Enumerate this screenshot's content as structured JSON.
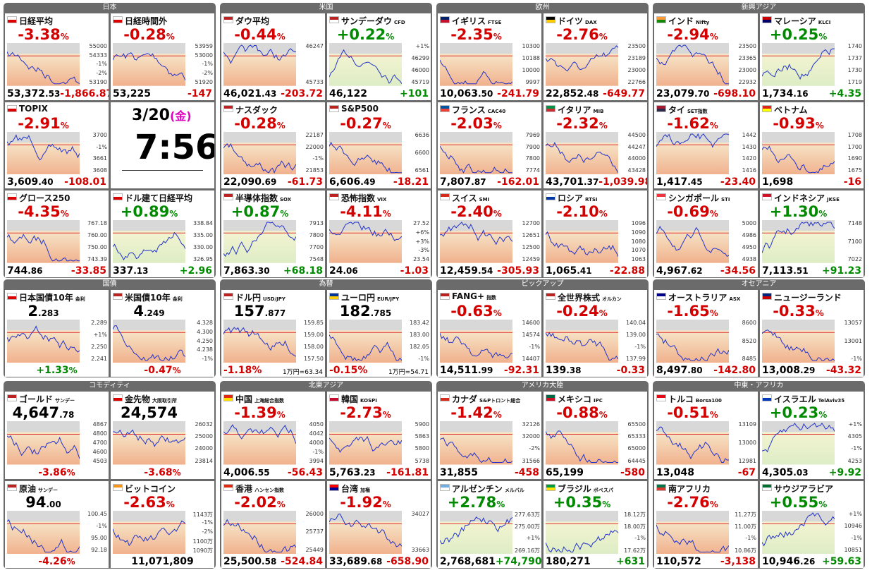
{
  "sections": [
    {
      "title": "日本",
      "tiles": [
        {
          "name": "日経平均",
          "flag": "jp",
          "head": "-3.38%",
          "labels": [
            "55000",
            "54333",
            "-1%",
            "-2%",
            "53190"
          ],
          "foot": [
            "53,372.53",
            "-1,866.87"
          ]
        },
        {
          "name": "日経時間外",
          "flag": "jp",
          "head": "-0.28%",
          "labels": [
            "53959",
            "53000",
            "-1%",
            "-2%",
            "51920"
          ],
          "foot": [
            "53,225",
            "-147"
          ]
        },
        {
          "name": "TOPIX",
          "flag": "jp",
          "head": "-2.91%",
          "labels": [
            "3700",
            "-1%",
            "3661",
            "3608"
          ],
          "foot": [
            "3,609.40",
            "-108.01"
          ]
        },
        {
          "date": "3/20",
          "weekday": "(金)",
          "time": "7:56"
        },
        {
          "name": "グロース250",
          "flag": "jp",
          "head": "-4.35%",
          "labels": [
            "767.18",
            "760.00",
            "750.00",
            "743.39"
          ],
          "foot": [
            "744.86",
            "-33.85"
          ]
        },
        {
          "name": "ドル建て日経平均",
          "flag": "jp",
          "head": "+0.89%",
          "labels": [
            "338.84",
            "335.00",
            "330.00",
            "326.95"
          ],
          "foot": [
            "337.13",
            "+2.96"
          ]
        }
      ]
    },
    {
      "title": "米国",
      "tiles": [
        {
          "name": "ダウ平均",
          "flag": "us",
          "head": "-0.44%",
          "labels": [
            "46247",
            "45733"
          ],
          "foot": [
            "46,021.43",
            "-203.72"
          ]
        },
        {
          "name": "サンデーダウ",
          "code": "CFD",
          "flag": "us",
          "head": "+0.22%",
          "labels": [
            "+1%",
            "46299",
            "46000",
            "45719"
          ],
          "foot": [
            "46,122",
            "+101"
          ]
        },
        {
          "name": "ナスダック",
          "flag": "us",
          "head": "-0.28%",
          "labels": [
            "22187",
            "22000",
            "-1%",
            "21853"
          ],
          "foot": [
            "22,090.69",
            "-61.73"
          ]
        },
        {
          "name": "S&P500",
          "flag": "us",
          "head": "-0.27%",
          "labels": [
            "6636",
            "6600",
            "6561"
          ],
          "foot": [
            "6,606.49",
            "-18.21"
          ]
        },
        {
          "name": "半導体指数",
          "code": "SOX",
          "flag": "us",
          "head": "+0.87%",
          "labels": [
            "7913",
            "7800",
            "7700",
            "7548"
          ],
          "foot": [
            "7,863.30",
            "+68.18"
          ]
        },
        {
          "name": "恐怖指数",
          "code": "VIX",
          "flag": "us",
          "head": "-4.11%",
          "labels": [
            "27.52",
            "+6%",
            "+3%",
            "-3%",
            "23.54"
          ],
          "foot": [
            "24.06",
            "-1.03"
          ]
        }
      ]
    },
    {
      "title": "欧州",
      "tiles": [
        {
          "name": "イギリス",
          "code": "FTSE",
          "flag": "gb",
          "head": "-2.35%",
          "labels": [
            "10300",
            "10188",
            "10000",
            "9997"
          ],
          "foot": [
            "10,063.50",
            "-241.79"
          ]
        },
        {
          "name": "ドイツ",
          "code": "DAX",
          "flag": "de",
          "head": "-2.76%",
          "labels": [
            "23500",
            "23189",
            "23000",
            "22766"
          ],
          "foot": [
            "22,852.48",
            "-649.77"
          ]
        },
        {
          "name": "フランス",
          "code": "CAC40",
          "flag": "fr",
          "head": "-2.03%",
          "labels": [
            "7969",
            "7900",
            "7800",
            "7774"
          ],
          "foot": [
            "7,807.87",
            "-162.01"
          ]
        },
        {
          "name": "イタリア",
          "code": "MIB",
          "flag": "it",
          "head": "-2.32%",
          "labels": [
            "44500",
            "44247",
            "44000",
            "43428"
          ],
          "foot": [
            "43,701.37",
            "-1,039.98"
          ]
        },
        {
          "name": "スイス",
          "code": "SMI",
          "flag": "ch",
          "head": "-2.40%",
          "labels": [
            "12700",
            "12651",
            "12500",
            "12459"
          ],
          "foot": [
            "12,459.54",
            "-305.93"
          ]
        },
        {
          "name": "ロシア",
          "code": "RTSI",
          "flag": "ru",
          "head": "-2.10%",
          "labels": [
            "1096",
            "1090",
            "1080",
            "1070",
            "1063"
          ],
          "foot": [
            "1,065.41",
            "-22.88"
          ]
        }
      ]
    },
    {
      "title": "新興アジア",
      "tiles": [
        {
          "name": "インド",
          "code": "Nifty",
          "flag": "in",
          "head": "-2.94%",
          "labels": [
            "23500",
            "23365",
            "23000",
            "22932"
          ],
          "foot": [
            "23,079.70",
            "-698.10"
          ]
        },
        {
          "name": "マレーシア",
          "code": "KLCI",
          "flag": "my",
          "head": "+0.25%",
          "labels": [
            "1740",
            "1737",
            "1730",
            "1719"
          ],
          "foot": [
            "1,734.16",
            "+4.35"
          ]
        },
        {
          "name": "タイ",
          "code": "SET指数",
          "flag": "th",
          "head": "-1.62%",
          "labels": [
            "1442",
            "1430",
            "1420",
            "1416"
          ],
          "foot": [
            "1,417.45",
            "-23.40"
          ]
        },
        {
          "name": "ベトナム",
          "flag": "vn",
          "head": "-0.93%",
          "labels": [
            "1708",
            "1700",
            "1690",
            "1675"
          ],
          "foot": [
            "1,698",
            "-16"
          ]
        },
        {
          "name": "シンガポール",
          "code": "STI",
          "flag": "sg",
          "head": "-0.69%",
          "labels": [
            "5000",
            "4986",
            "4950",
            "4938"
          ],
          "foot": [
            "4,967.62",
            "-34.56"
          ]
        },
        {
          "name": "インドネシア",
          "code": "JKSE",
          "flag": "id",
          "head": "+1.30%",
          "labels": [
            "7148",
            "7100",
            "7022"
          ],
          "foot": [
            "7,113.51",
            "+91.23"
          ]
        }
      ]
    },
    {
      "title": "国債",
      "tiles": [
        {
          "name": "日本国債10年",
          "code": "金利",
          "flag": "jp",
          "head": "2.283",
          "labels": [
            "2.289",
            "+1%",
            "2.250",
            "2.241"
          ],
          "foot": [
            "+1.33%"
          ]
        },
        {
          "name": "米国債10年",
          "code": "金利",
          "flag": "us",
          "head": "4.249",
          "labels": [
            "4.328",
            "4.300",
            "4.250",
            "4.238",
            "-1%"
          ],
          "foot": [
            "-0.47%"
          ]
        }
      ]
    },
    {
      "title": "為替",
      "tiles": [
        {
          "name": "ドル円",
          "code": "USD/JPY",
          "flag": "us",
          "head": "157.877",
          "labels": [
            "159.85",
            "159.00",
            "158.00",
            "157.50"
          ],
          "foot": [
            "-1.18%",
            "1万円=63.34"
          ]
        },
        {
          "name": "ユーロ円",
          "code": "EUR/JPY",
          "flag": "eu",
          "head": "182.785",
          "labels": [
            "183.42",
            "183.00",
            "182.05",
            "-1%"
          ],
          "foot": [
            "-0.15%",
            "1万円=54.71"
          ]
        }
      ]
    },
    {
      "title": "ピックアップ",
      "tiles": [
        {
          "name": "FANG+",
          "code": "指数",
          "flag": "us",
          "head": "-0.63%",
          "labels": [
            "14600",
            "14574",
            "-1%",
            "14407"
          ],
          "foot": [
            "14,511.99",
            "-92.31"
          ]
        },
        {
          "name": "全世界株式",
          "code": "オルカン",
          "flag": "us",
          "head": "-0.24%",
          "labels": [
            "140.04",
            "139.00",
            "-1%",
            "137.99"
          ],
          "foot": [
            "139.38",
            "-0.33"
          ]
        }
      ]
    },
    {
      "title": "オセアニア",
      "tiles": [
        {
          "name": "オーストラリア",
          "code": "ASX",
          "flag": "au",
          "head": "-1.65%",
          "labels": [
            "8600",
            "8520",
            "8485"
          ],
          "foot": [
            "8,497.80",
            "-142.80"
          ]
        },
        {
          "name": "ニュージーランド",
          "flag": "nz",
          "head": "-0.33%",
          "labels": [
            "13057",
            "13001",
            "-1%"
          ],
          "foot": [
            "13,008.29",
            "-43.32"
          ]
        }
      ]
    },
    {
      "title": "コモディティ",
      "tiles": [
        {
          "name": "ゴールド",
          "code": "サンデー",
          "flag": "us",
          "head": "4,647.78",
          "labels": [
            "4867",
            "4800",
            "4700",
            "4600",
            "4503"
          ],
          "foot": [
            "-3.86%"
          ]
        },
        {
          "name": "金先物",
          "code": "大阪取引所",
          "flag": "jp",
          "head": "24,574",
          "labels": [
            "26032",
            "25000",
            "24000",
            "23814"
          ],
          "foot": [
            "-3.68%"
          ]
        },
        {
          "name": "原油",
          "code": "サンデー",
          "flag": "us",
          "head": "94.00",
          "labels": [
            "100.45",
            "-1%",
            "95.00",
            "92.18"
          ],
          "foot": [
            "-4.26%"
          ]
        },
        {
          "name": "ビットコイン",
          "flag": "btc",
          "head": "-2.63%",
          "labels": [
            "1143万",
            "-1%",
            "-2%",
            "1100万",
            "1090万"
          ],
          "foot": [
            "11,071,809"
          ]
        }
      ]
    },
    {
      "title": "北東アジア",
      "tiles": [
        {
          "name": "中国",
          "code": "上海総合指数",
          "flag": "cn",
          "head": "-1.39%",
          "labels": [
            "4050",
            "4042",
            "4000",
            "-1%",
            "3994"
          ],
          "foot": [
            "4,006.55",
            "-56.43"
          ]
        },
        {
          "name": "韓国",
          "code": "KOSPI",
          "flag": "kr",
          "head": "-2.73%",
          "labels": [
            "5900",
            "5863",
            "5800",
            "5738"
          ],
          "foot": [
            "5,763.23",
            "-161.81"
          ]
        },
        {
          "name": "香港",
          "code": "ハンセン指数",
          "flag": "hk",
          "head": "-2.02%",
          "labels": [
            "26000",
            "25737",
            "25449"
          ],
          "foot": [
            "25,500.58",
            "-524.84"
          ]
        },
        {
          "name": "台湾",
          "code": "加権",
          "flag": "tw",
          "head": "-1.92%",
          "labels": [
            "34027",
            "33663"
          ],
          "foot": [
            "33,689.68",
            "-658.90"
          ]
        }
      ]
    },
    {
      "title": "アメリカ大陸",
      "tiles": [
        {
          "name": "カナダ",
          "code": "S&Pトロント総合",
          "flag": "ca",
          "head": "-1.42%",
          "labels": [
            "32126",
            "32000",
            "-2%",
            "31566"
          ],
          "foot": [
            "31,855",
            "-458"
          ]
        },
        {
          "name": "メキシコ",
          "code": "IPC",
          "flag": "mx",
          "head": "-0.88%",
          "labels": [
            "65500",
            "65333",
            "65000",
            "64445"
          ],
          "foot": [
            "65,199",
            "-580"
          ]
        },
        {
          "name": "アルゼンチン",
          "code": "メルバル",
          "flag": "ar",
          "head": "+2.78%",
          "labels": [
            "277.63万",
            "275.00万",
            "+1%",
            "269.16万"
          ],
          "foot": [
            "2,768,681",
            "+74,790"
          ]
        },
        {
          "name": "ブラジル",
          "code": "ボベスパ",
          "flag": "br",
          "head": "+0.35%",
          "labels": [
            "18.12万",
            "18.00万",
            "-1%",
            "17.62万"
          ],
          "foot": [
            "180,271",
            "+631"
          ]
        }
      ]
    },
    {
      "title": "中東・アフリカ",
      "tiles": [
        {
          "name": "トルコ",
          "code": "Borsa100",
          "flag": "tr",
          "head": "-0.51%",
          "labels": [
            "13109",
            "13000",
            "12981"
          ],
          "foot": [
            "13,048",
            "-67"
          ]
        },
        {
          "name": "イスラエル",
          "code": "TelAviv35",
          "flag": "il",
          "head": "+0.23%",
          "labels": [
            "+1%",
            "4305",
            "-1%",
            "4253"
          ],
          "foot": [
            "4,305.03",
            "+9.92"
          ]
        },
        {
          "name": "南アフリカ",
          "flag": "za",
          "head": "-2.76%",
          "labels": [
            "11.27万",
            "11.00万",
            "-1%",
            "10.86万"
          ],
          "foot": [
            "110,572",
            "-3,138"
          ]
        },
        {
          "name": "サウジアラビア",
          "flag": "sa",
          "head": "+0.55%",
          "labels": [
            "+1%",
            "10946",
            "-1%",
            "10851"
          ],
          "foot": [
            "10,946.26",
            "+59.63"
          ]
        }
      ]
    }
  ]
}
